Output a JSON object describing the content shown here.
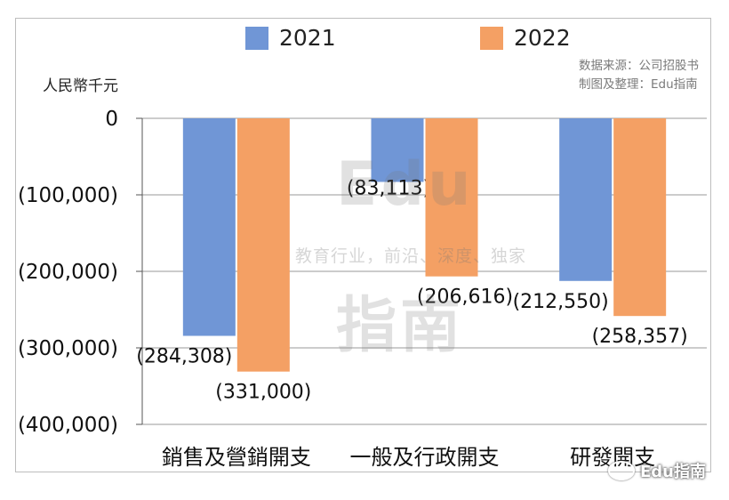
{
  "chart_data": {
    "type": "bar",
    "categories": [
      "銷售及營銷開支",
      "一般及行政開支",
      "研發開支"
    ],
    "series": [
      {
        "name": "2021",
        "values": [
          -284308,
          -83113,
          -212550
        ],
        "labels": [
          "(284,308)",
          "(83,113)",
          "(212,550)"
        ],
        "color": "#7096d6"
      },
      {
        "name": "2022",
        "values": [
          -331000,
          -206616,
          -258357
        ],
        "labels": [
          "(331,000)",
          "(206,616)",
          "(258,357)"
        ],
        "color": "#f4a064"
      }
    ],
    "ylabel": "人民幣千元",
    "ylim": [
      -400000,
      0
    ],
    "yticks": [
      0,
      -100000,
      -200000,
      -300000,
      -400000
    ],
    "ytick_labels": [
      "0",
      "(100,000)",
      "(200,000)",
      "(300,000)",
      "(400,000)"
    ],
    "grid": true,
    "legend": "top-center"
  },
  "source": {
    "line1": "数据来源：公司招股书",
    "line2": "制图及整理：Edu指南"
  },
  "watermark": {
    "big1": "Edu",
    "big2": "指南",
    "tagline": "教育行业，前沿、深度、独家",
    "brand": "Edu指南"
  }
}
